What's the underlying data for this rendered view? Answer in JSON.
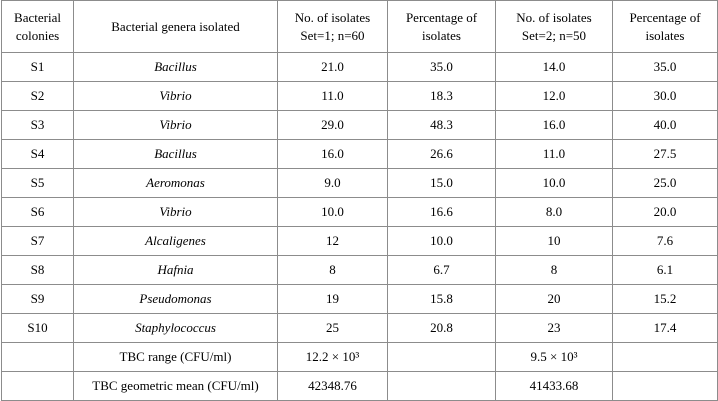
{
  "table": {
    "header": [
      [
        "Bacterial",
        "colonies"
      ],
      [
        "Bacterial genera isolated"
      ],
      [
        "No. of isolates",
        "Set=1; n=60"
      ],
      [
        "Percentage of",
        "isolates"
      ],
      [
        "No. of isolates",
        "Set=2; n=50"
      ],
      [
        "Percentage of",
        "isolates"
      ]
    ],
    "rows": [
      [
        "S1",
        "Bacillus",
        "21.0",
        "35.0",
        "14.0",
        "35.0"
      ],
      [
        "S2",
        "Vibrio",
        "11.0",
        "18.3",
        "12.0",
        "30.0"
      ],
      [
        "S3",
        "Vibrio",
        "29.0",
        "48.3",
        "16.0",
        "40.0"
      ],
      [
        "S4",
        "Bacillus",
        "16.0",
        "26.6",
        "11.0",
        "27.5"
      ],
      [
        "S5",
        "Aeromonas",
        "9.0",
        "15.0",
        "10.0",
        "25.0"
      ],
      [
        "S6",
        "Vibrio",
        "10.0",
        "16.6",
        "8.0",
        "20.0"
      ],
      [
        "S7",
        "Alcaligenes",
        "12",
        "10.0",
        "10",
        "7.6"
      ],
      [
        "S8",
        "Hafnia",
        "8",
        "6.7",
        "8",
        "6.1"
      ],
      [
        "S9",
        "Pseudomonas",
        "19",
        "15.8",
        "20",
        "15.2"
      ],
      [
        "S10",
        "Staphylococcus",
        "25",
        "20.8",
        "23",
        "17.4"
      ]
    ],
    "footer": [
      {
        "label": "TBC range (CFU/ml)",
        "set1": "12.2 × 10³",
        "set2": "9.5 × 10³"
      },
      {
        "label": "TBC geometric mean (CFU/ml)",
        "set1": "42348.76",
        "set2": "41433.68"
      }
    ]
  }
}
